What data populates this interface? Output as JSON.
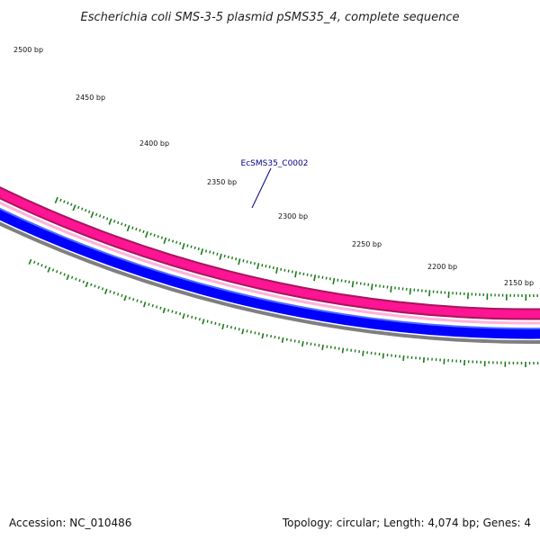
{
  "title": "Escherichia coli SMS-3-5 plasmid pSMS35_4, complete sequence",
  "colors": {
    "forward_strand": "#ff1493",
    "forward_strand_edge": "#a8145f",
    "reverse_strand": "#0000ff",
    "backbone": "#7f7f7f",
    "ticks": "#1a7a1a",
    "gene_label": "#00008b"
  },
  "ruler": {
    "major_labels": [
      "2500 bp",
      "2450 bp",
      "2400 bp",
      "2350 bp",
      "2300 bp",
      "2250 bp",
      "2200 bp",
      "2150 bp"
    ]
  },
  "gene_label": {
    "text": "EcSMS35_C0002"
  },
  "footer": {
    "accession": "Accession: NC_010486",
    "summary": "Topology: circular; Length: 4,074 bp; Genes: 4"
  }
}
